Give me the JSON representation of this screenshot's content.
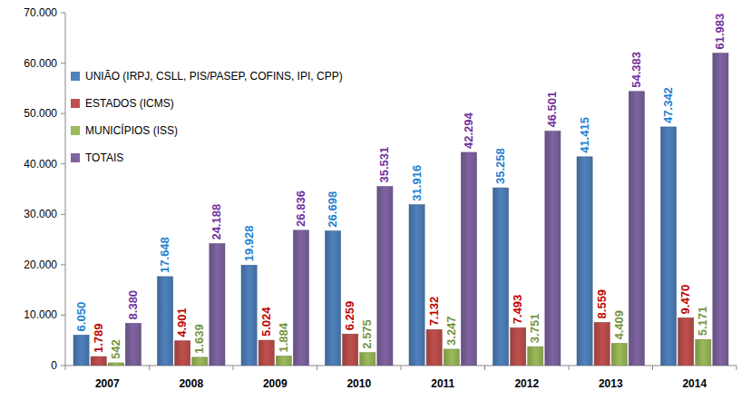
{
  "chart_data": {
    "type": "bar",
    "categories": [
      "2007",
      "2008",
      "2009",
      "2010",
      "2011",
      "2012",
      "2013",
      "2014"
    ],
    "series": [
      {
        "name": "UNIÃO (IRPJ, CSLL, PIS/PASEP, COFINS, IPI, CPP)",
        "color": "#4f81bd",
        "values": [
          6050,
          17648,
          19928,
          26698,
          31916,
          35258,
          41415,
          47342
        ],
        "value_labels": [
          "6.050",
          "17.648",
          "19.928",
          "26.698",
          "31.916",
          "35.258",
          "41.415",
          "47.342"
        ]
      },
      {
        "name": "ESTADOS (ICMS)",
        "color": "#c0504d",
        "values": [
          1789,
          4901,
          5024,
          6259,
          7132,
          7493,
          8559,
          9470
        ],
        "value_labels": [
          "1.789",
          "4.901",
          "5.024",
          "6.259",
          "7.132",
          "7.493",
          "8.559",
          "9.470"
        ]
      },
      {
        "name": "MUNICÍPIOS (ISS)",
        "color": "#9bbb59",
        "values": [
          542,
          1639,
          1884,
          2575,
          3247,
          3751,
          4409,
          5171
        ],
        "value_labels": [
          "542",
          "1.639",
          "1.884",
          "2.575",
          "3.247",
          "3.751",
          "4.409",
          "5.171"
        ]
      },
      {
        "name": "TOTAIS",
        "color": "#8064a2",
        "values": [
          8380,
          24188,
          26836,
          35531,
          42294,
          46501,
          54383,
          61983
        ],
        "value_labels": [
          "8.380",
          "24.188",
          "26.836",
          "35.531",
          "42.294",
          "46.501",
          "54.383",
          "61.983"
        ]
      }
    ],
    "ylim": [
      0,
      70000
    ],
    "yticks": [
      0,
      {
        "value": 10000,
        "label": "10.000"
      },
      {
        "value": 20000,
        "label": "20.000"
      },
      {
        "value": 30000,
        "label": "30.000"
      },
      {
        "value": 40000,
        "label": "40.000"
      },
      {
        "value": 50000,
        "label": "50.000"
      },
      {
        "value": 60000,
        "label": "60.000"
      },
      {
        "value": 70000,
        "label": "70.000"
      }
    ],
    "grid": false,
    "legend": "upper left",
    "data_labels": true
  }
}
